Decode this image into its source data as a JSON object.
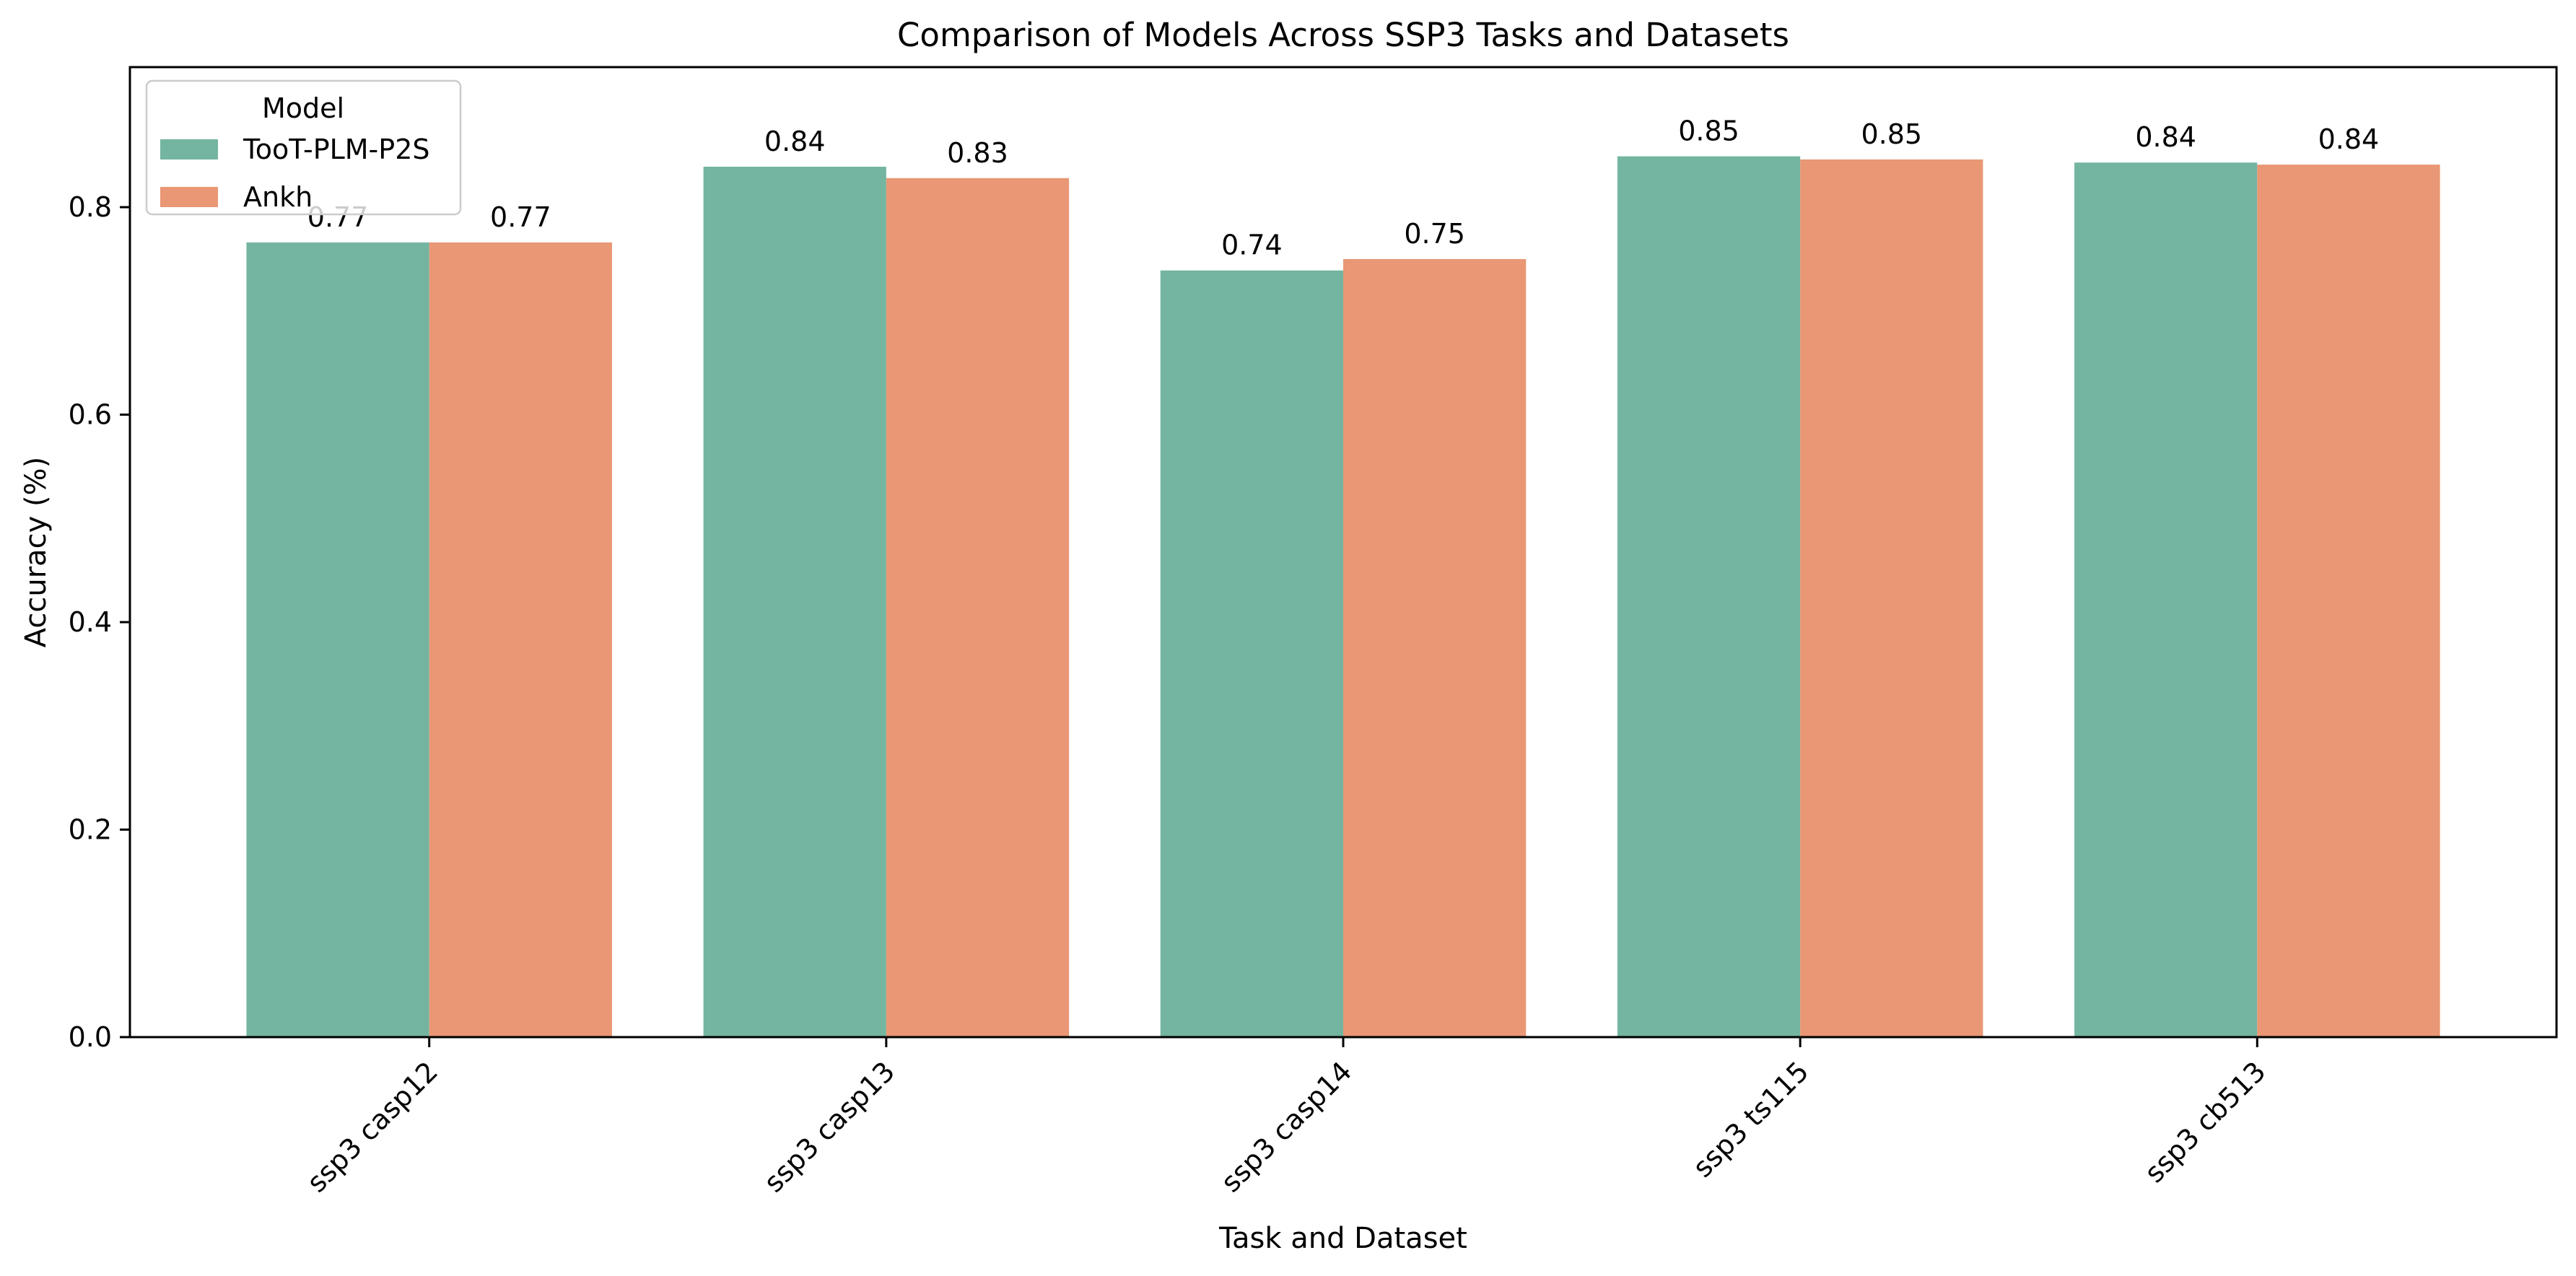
{
  "chart_data": {
    "type": "bar",
    "title": "Comparison of Models Across SSP3 Tasks and Datasets",
    "xlabel": "Task and Dataset",
    "ylabel": "Accuracy (%)",
    "categories": [
      "ssp3 casp12",
      "ssp3 casp13",
      "ssp3 casp14",
      "ssp3 ts115",
      "ssp3 cb513"
    ],
    "series": [
      {
        "name": "TooT-PLM-P2S",
        "color": "#73b5a0",
        "values": [
          0.766,
          0.839,
          0.739,
          0.849,
          0.843
        ],
        "labels": [
          "0.77",
          "0.84",
          "0.74",
          "0.85",
          "0.84"
        ]
      },
      {
        "name": "Ankh",
        "color": "#e99774",
        "values": [
          0.766,
          0.828,
          0.75,
          0.846,
          0.841
        ],
        "labels": [
          "0.77",
          "0.83",
          "0.75",
          "0.85",
          "0.84"
        ]
      }
    ],
    "ylim": [
      0,
      0.935
    ],
    "yticks": [
      0.0,
      0.2,
      0.4,
      0.6,
      0.8
    ],
    "ytick_labels": [
      "0.0",
      "0.2",
      "0.4",
      "0.6",
      "0.8"
    ],
    "grid": false,
    "legend": {
      "title": "Model",
      "placement": "top-left"
    },
    "xtick_rotation": 45
  }
}
